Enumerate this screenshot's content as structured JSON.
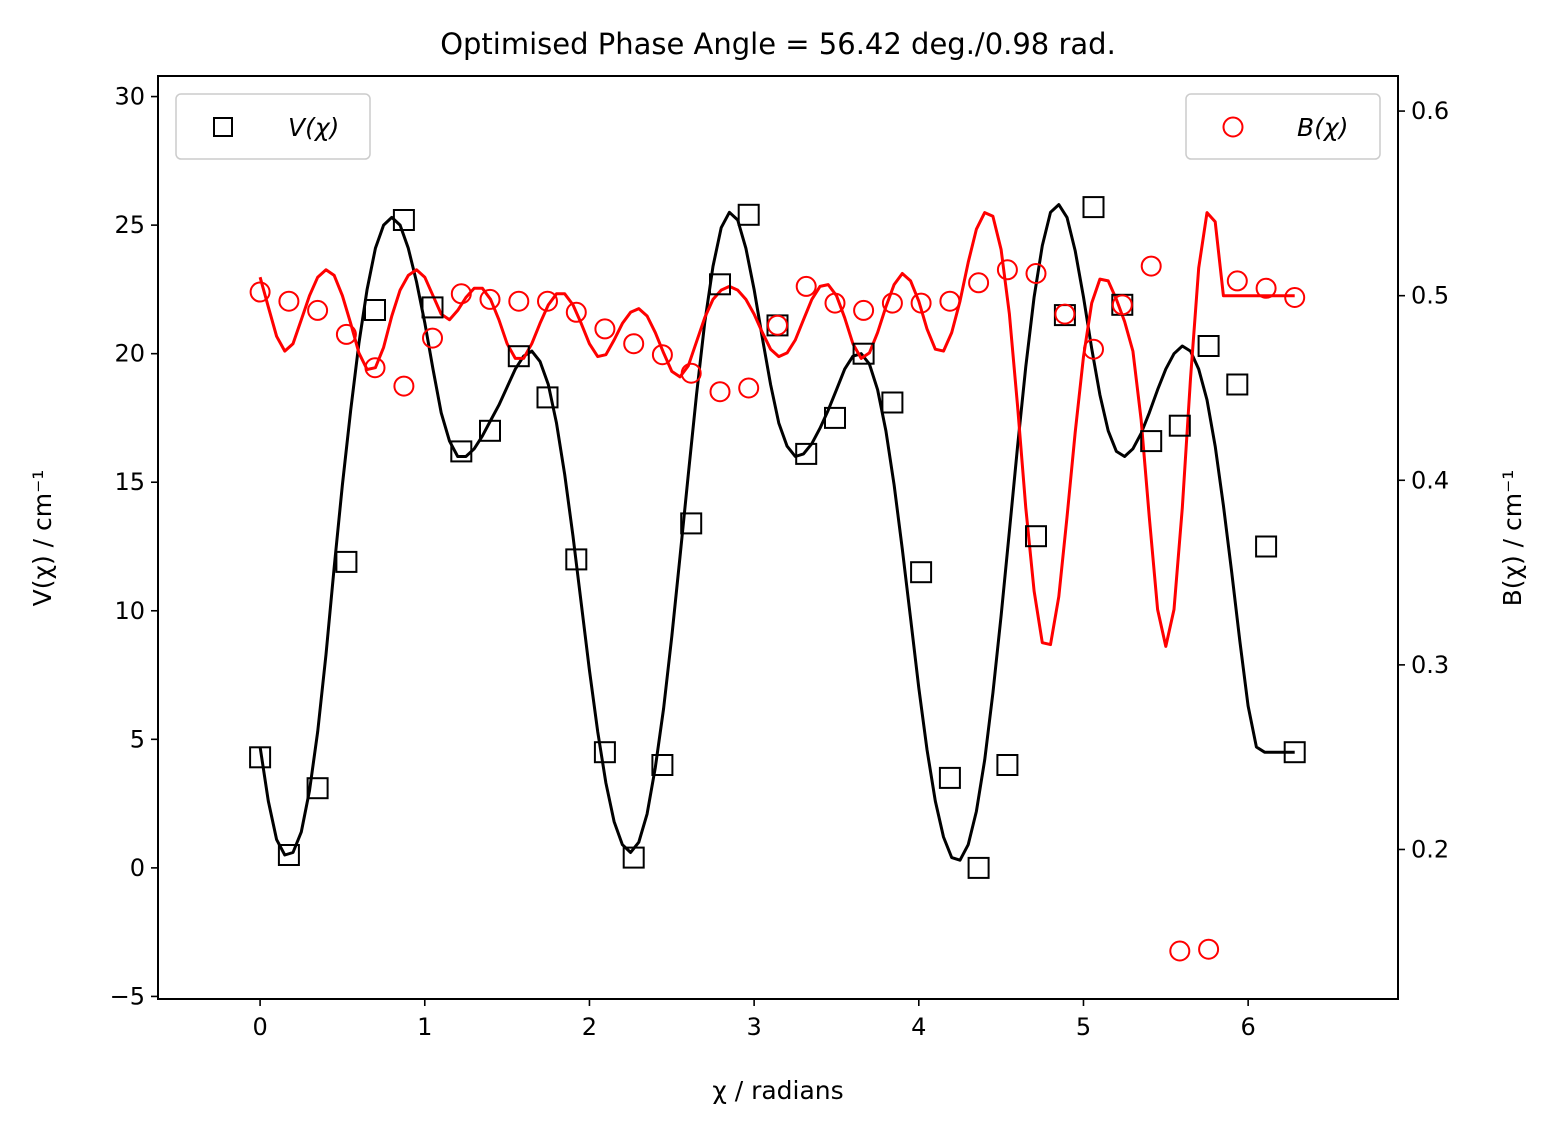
{
  "chart_data": {
    "type": "scatter",
    "title": "Optimised Phase Angle = 56.42 deg./0.98 rad.",
    "xlabel": "χ / radians",
    "ylabel_left": "V(χ) / cm⁻¹",
    "ylabel_right": "B(χ) / cm⁻¹",
    "xlim": [
      -0.62,
      6.91
    ],
    "ylim_left": [
      -5.1,
      30.8
    ],
    "ylim_right": [
      0.119,
      0.619
    ],
    "xticks": [
      0,
      1,
      2,
      3,
      4,
      5,
      6
    ],
    "xtick_labels": [
      "0",
      "1",
      "2",
      "3",
      "4",
      "5",
      "6"
    ],
    "yticks_left": [
      -5,
      0,
      5,
      10,
      15,
      20,
      25,
      30
    ],
    "ytick_labels_left": [
      "−5",
      "0",
      "5",
      "10",
      "15",
      "20",
      "25",
      "30"
    ],
    "yticks_right": [
      0.2,
      0.3,
      0.4,
      0.5,
      0.6
    ],
    "ytick_labels_right": [
      "0.2",
      "0.3",
      "0.4",
      "0.5",
      "0.6"
    ],
    "grid": false,
    "series": [
      {
        "name": "V(χ)",
        "axis": "left",
        "marker": "square",
        "color": "#000000",
        "x": [
          0.0,
          0.175,
          0.349,
          0.524,
          0.698,
          0.873,
          1.047,
          1.222,
          1.396,
          1.571,
          1.745,
          1.92,
          2.094,
          2.269,
          2.443,
          2.618,
          2.793,
          2.967,
          3.142,
          3.316,
          3.491,
          3.665,
          3.84,
          4.014,
          4.189,
          4.363,
          4.538,
          4.712,
          4.887,
          5.061,
          5.236,
          5.411,
          5.585,
          5.76,
          5.934,
          6.109,
          6.283
        ],
        "y": [
          4.3,
          0.5,
          3.1,
          11.9,
          21.7,
          25.2,
          21.8,
          16.2,
          17.0,
          19.9,
          18.3,
          12.0,
          4.5,
          0.4,
          4.0,
          13.4,
          22.7,
          25.4,
          21.1,
          16.1,
          17.5,
          20.0,
          18.1,
          11.5,
          3.5,
          0.0,
          4.0,
          12.9,
          21.5,
          25.7,
          21.9,
          16.6,
          17.2,
          20.3,
          18.8,
          12.5,
          4.5
        ]
      },
      {
        "name": "B(χ)",
        "axis": "right",
        "marker": "circle",
        "color": "#ff0000",
        "x": [
          0.0,
          0.175,
          0.349,
          0.524,
          0.698,
          0.873,
          1.047,
          1.222,
          1.396,
          1.571,
          1.745,
          1.92,
          2.094,
          2.269,
          2.443,
          2.618,
          2.793,
          2.967,
          3.142,
          3.316,
          3.491,
          3.665,
          3.84,
          4.014,
          4.189,
          4.363,
          4.538,
          4.712,
          4.887,
          5.061,
          5.236,
          5.411,
          5.585,
          5.76,
          5.934,
          6.109,
          6.283
        ],
        "y": [
          0.502,
          0.497,
          0.492,
          0.479,
          0.461,
          0.451,
          0.477,
          0.501,
          0.498,
          0.497,
          0.497,
          0.491,
          0.482,
          0.474,
          0.468,
          0.458,
          0.448,
          0.45,
          0.484,
          0.505,
          0.496,
          0.492,
          0.496,
          0.496,
          0.497,
          0.507,
          0.514,
          0.512,
          0.49,
          0.471,
          0.495,
          0.516,
          0.145,
          0.146,
          0.508,
          0.504,
          0.499
        ]
      }
    ],
    "fit_curves": [
      {
        "axis": "left",
        "color": "#000000",
        "x": [
          0.0,
          0.05,
          0.1,
          0.15,
          0.2,
          0.25,
          0.3,
          0.35,
          0.4,
          0.45,
          0.5,
          0.55,
          0.6,
          0.65,
          0.7,
          0.75,
          0.8,
          0.85,
          0.9,
          0.95,
          1.0,
          1.05,
          1.1,
          1.15,
          1.2,
          1.25,
          1.3,
          1.35,
          1.4,
          1.45,
          1.5,
          1.55,
          1.6,
          1.65,
          1.7,
          1.75,
          1.8,
          1.85,
          1.9,
          1.95,
          2.0,
          2.05,
          2.1,
          2.15,
          2.2,
          2.25,
          2.3,
          2.35,
          2.4,
          2.45,
          2.5,
          2.55,
          2.6,
          2.65,
          2.7,
          2.75,
          2.8,
          2.85,
          2.9,
          2.95,
          3.0,
          3.05,
          3.1,
          3.15,
          3.2,
          3.25,
          3.3,
          3.35,
          3.4,
          3.45,
          3.5,
          3.55,
          3.6,
          3.65,
          3.7,
          3.75,
          3.8,
          3.85,
          3.9,
          3.95,
          4.0,
          4.05,
          4.1,
          4.15,
          4.2,
          4.25,
          4.3,
          4.35,
          4.4,
          4.45,
          4.5,
          4.55,
          4.6,
          4.65,
          4.7,
          4.75,
          4.8,
          4.85,
          4.9,
          4.95,
          5.0,
          5.05,
          5.1,
          5.15,
          5.2,
          5.25,
          5.3,
          5.35,
          5.4,
          5.45,
          5.5,
          5.55,
          5.6,
          5.65,
          5.7,
          5.75,
          5.8,
          5.85,
          5.9,
          5.95,
          6.0,
          6.05,
          6.1,
          6.15,
          6.2,
          6.25,
          6.283
        ],
        "y": [
          4.7,
          2.6,
          1.1,
          0.5,
          0.6,
          1.4,
          3.0,
          5.3,
          8.3,
          11.7,
          14.9,
          17.8,
          20.4,
          22.5,
          24.1,
          25.0,
          25.3,
          25.0,
          24.1,
          22.8,
          21.2,
          19.4,
          17.7,
          16.6,
          16.0,
          16.0,
          16.3,
          16.8,
          17.4,
          18.0,
          18.7,
          19.4,
          19.9,
          20.1,
          19.7,
          18.8,
          17.3,
          15.3,
          12.9,
          10.3,
          7.7,
          5.3,
          3.3,
          1.8,
          0.9,
          0.6,
          1.0,
          2.1,
          3.9,
          6.2,
          9.0,
          12.1,
          15.3,
          18.4,
          21.2,
          23.4,
          24.9,
          25.5,
          25.2,
          24.1,
          22.5,
          20.6,
          18.8,
          17.3,
          16.4,
          16.0,
          16.1,
          16.5,
          17.1,
          17.8,
          18.6,
          19.4,
          19.9,
          20.0,
          19.6,
          18.6,
          17.0,
          14.9,
          12.4,
          9.7,
          7.0,
          4.6,
          2.6,
          1.2,
          0.4,
          0.3,
          0.9,
          2.2,
          4.2,
          6.8,
          9.8,
          13.1,
          16.4,
          19.5,
          22.2,
          24.2,
          25.5,
          25.8,
          25.3,
          24.0,
          22.2,
          20.2,
          18.4,
          17.0,
          16.2,
          16.0,
          16.3,
          16.9,
          17.7,
          18.6,
          19.4,
          20.0,
          20.3,
          20.1,
          19.4,
          18.2,
          16.4,
          14.1,
          11.5,
          8.8,
          6.3,
          4.7,
          4.5,
          4.5,
          4.5,
          4.5,
          4.5
        ]
      },
      {
        "axis": "right",
        "color": "#ff0000",
        "x": [
          0.0,
          0.05,
          0.1,
          0.15,
          0.2,
          0.25,
          0.3,
          0.35,
          0.4,
          0.45,
          0.5,
          0.55,
          0.6,
          0.65,
          0.7,
          0.75,
          0.8,
          0.85,
          0.9,
          0.95,
          1.0,
          1.05,
          1.1,
          1.15,
          1.2,
          1.25,
          1.3,
          1.35,
          1.4,
          1.45,
          1.5,
          1.55,
          1.6,
          1.65,
          1.7,
          1.75,
          1.8,
          1.85,
          1.9,
          1.95,
          2.0,
          2.05,
          2.1,
          2.15,
          2.2,
          2.25,
          2.3,
          2.35,
          2.4,
          2.45,
          2.5,
          2.55,
          2.6,
          2.65,
          2.7,
          2.75,
          2.8,
          2.85,
          2.9,
          2.95,
          3.0,
          3.05,
          3.1,
          3.15,
          3.2,
          3.25,
          3.3,
          3.35,
          3.4,
          3.45,
          3.5,
          3.55,
          3.6,
          3.65,
          3.7,
          3.75,
          3.8,
          3.85,
          3.9,
          3.95,
          4.0,
          4.05,
          4.1,
          4.15,
          4.2,
          4.25,
          4.3,
          4.35,
          4.4,
          4.45,
          4.5,
          4.55,
          4.6,
          4.65,
          4.7,
          4.75,
          4.8,
          4.85,
          4.9,
          4.95,
          5.0,
          5.05,
          5.1,
          5.15,
          5.2,
          5.25,
          5.3,
          5.35,
          5.4,
          5.45,
          5.5,
          5.55,
          5.6,
          5.65,
          5.7,
          5.75,
          5.8,
          5.85,
          5.9,
          5.95,
          6.0,
          6.05,
          6.1,
          6.15,
          6.2,
          6.25,
          6.283
        ],
        "y": [
          0.51,
          0.494,
          0.478,
          0.47,
          0.474,
          0.487,
          0.5,
          0.51,
          0.514,
          0.511,
          0.5,
          0.485,
          0.469,
          0.46,
          0.461,
          0.472,
          0.489,
          0.503,
          0.511,
          0.514,
          0.51,
          0.5,
          0.49,
          0.487,
          0.492,
          0.499,
          0.504,
          0.504,
          0.498,
          0.487,
          0.474,
          0.466,
          0.466,
          0.474,
          0.485,
          0.495,
          0.501,
          0.501,
          0.495,
          0.485,
          0.474,
          0.467,
          0.468,
          0.476,
          0.485,
          0.491,
          0.493,
          0.489,
          0.48,
          0.469,
          0.459,
          0.456,
          0.462,
          0.475,
          0.488,
          0.498,
          0.503,
          0.505,
          0.503,
          0.498,
          0.49,
          0.48,
          0.471,
          0.467,
          0.469,
          0.476,
          0.487,
          0.498,
          0.505,
          0.506,
          0.5,
          0.488,
          0.474,
          0.466,
          0.469,
          0.48,
          0.494,
          0.506,
          0.512,
          0.508,
          0.497,
          0.482,
          0.471,
          0.47,
          0.48,
          0.497,
          0.518,
          0.536,
          0.545,
          0.543,
          0.525,
          0.49,
          0.44,
          0.385,
          0.34,
          0.312,
          0.311,
          0.337,
          0.38,
          0.426,
          0.467,
          0.496,
          0.509,
          0.508,
          0.498,
          0.486,
          0.47,
          0.433,
          0.38,
          0.33,
          0.31,
          0.33,
          0.385,
          0.455,
          0.515,
          0.545,
          0.54,
          0.5,
          0.5,
          0.5,
          0.5,
          0.5,
          0.5,
          0.5,
          0.5,
          0.5,
          0.5
        ]
      }
    ],
    "legends": [
      {
        "placement": "top-left",
        "label": "V(χ)",
        "marker": "square",
        "color": "#000000"
      },
      {
        "placement": "top-right",
        "label": "B(χ)",
        "marker": "circle",
        "color": "#ff0000"
      }
    ]
  }
}
